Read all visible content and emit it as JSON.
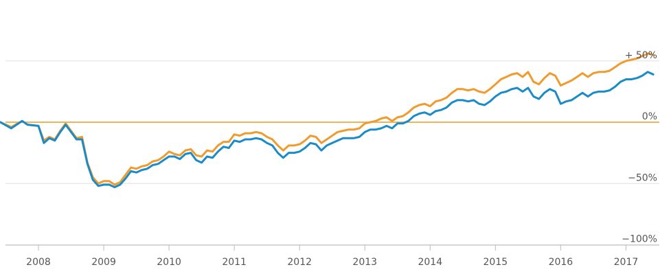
{
  "chart_data": {
    "type": "line",
    "title": "",
    "xlabel": "",
    "ylabel": "",
    "x_start": "2007-06",
    "x_end": "2017-06",
    "ylim": [
      -100,
      68
    ],
    "y_ticks": [
      {
        "value": 50,
        "label": "+ 50%"
      },
      {
        "value": 0,
        "label": "0%"
      },
      {
        "value": -50,
        "label": "−50%"
      },
      {
        "value": -100,
        "label": "−100%"
      }
    ],
    "x_ticks": [
      "2008",
      "2009",
      "2010",
      "2011",
      "2012",
      "2013",
      "2014",
      "2015",
      "2016",
      "2017"
    ],
    "grid": true,
    "zero_line_color": "#f0b458",
    "series": [
      {
        "color": "#ef9b2e",
        "points": [
          [
            "2007-06",
            0
          ],
          [
            "2007-08",
            -4
          ],
          [
            "2007-10",
            1
          ],
          [
            "2007-11",
            -2
          ],
          [
            "2008-01",
            -3
          ],
          [
            "2008-02",
            -15
          ],
          [
            "2008-03",
            -12
          ],
          [
            "2008-04",
            -14
          ],
          [
            "2008-05",
            -7
          ],
          [
            "2008-06",
            -1
          ],
          [
            "2008-07",
            -7
          ],
          [
            "2008-08",
            -13
          ],
          [
            "2008-09",
            -12
          ],
          [
            "2008-10",
            -33
          ],
          [
            "2008-11",
            -45
          ],
          [
            "2008-12",
            -50
          ],
          [
            "2009-01",
            -48
          ],
          [
            "2009-02",
            -48
          ],
          [
            "2009-03",
            -51
          ],
          [
            "2009-04",
            -49
          ],
          [
            "2009-05",
            -43
          ],
          [
            "2009-06",
            -37
          ],
          [
            "2009-07",
            -38
          ],
          [
            "2009-08",
            -36
          ],
          [
            "2009-09",
            -35
          ],
          [
            "2009-10",
            -32
          ],
          [
            "2009-11",
            -31
          ],
          [
            "2009-12",
            -28
          ],
          [
            "2010-01",
            -24
          ],
          [
            "2010-02",
            -26
          ],
          [
            "2010-03",
            -27
          ],
          [
            "2010-04",
            -23
          ],
          [
            "2010-05",
            -22
          ],
          [
            "2010-06",
            -27
          ],
          [
            "2010-07",
            -28
          ],
          [
            "2010-08",
            -23
          ],
          [
            "2010-09",
            -24
          ],
          [
            "2010-10",
            -19
          ],
          [
            "2010-11",
            -16
          ],
          [
            "2010-12",
            -16
          ],
          [
            "2011-01",
            -10
          ],
          [
            "2011-02",
            -11
          ],
          [
            "2011-03",
            -9
          ],
          [
            "2011-04",
            -9
          ],
          [
            "2011-05",
            -8
          ],
          [
            "2011-06",
            -9
          ],
          [
            "2011-07",
            -12
          ],
          [
            "2011-08",
            -14
          ],
          [
            "2011-09",
            -19
          ],
          [
            "2011-10",
            -23
          ],
          [
            "2011-11",
            -19
          ],
          [
            "2011-12",
            -19
          ],
          [
            "2012-01",
            -18
          ],
          [
            "2012-02",
            -15
          ],
          [
            "2012-03",
            -11
          ],
          [
            "2012-04",
            -12
          ],
          [
            "2012-05",
            -17
          ],
          [
            "2012-06",
            -14
          ],
          [
            "2012-07",
            -11
          ],
          [
            "2012-08",
            -8
          ],
          [
            "2012-09",
            -7
          ],
          [
            "2012-10",
            -6
          ],
          [
            "2012-11",
            -6
          ],
          [
            "2012-12",
            -5
          ],
          [
            "2013-01",
            -1
          ],
          [
            "2013-02",
            0
          ],
          [
            "2013-03",
            1
          ],
          [
            "2013-04",
            3
          ],
          [
            "2013-05",
            4
          ],
          [
            "2013-06",
            1
          ],
          [
            "2013-07",
            4
          ],
          [
            "2013-08",
            5
          ],
          [
            "2013-09",
            8
          ],
          [
            "2013-10",
            12
          ],
          [
            "2013-11",
            14
          ],
          [
            "2013-12",
            15
          ],
          [
            "2014-01",
            13
          ],
          [
            "2014-02",
            17
          ],
          [
            "2014-03",
            18
          ],
          [
            "2014-04",
            20
          ],
          [
            "2014-05",
            24
          ],
          [
            "2014-06",
            27
          ],
          [
            "2014-07",
            27
          ],
          [
            "2014-08",
            26
          ],
          [
            "2014-09",
            27
          ],
          [
            "2014-10",
            25
          ],
          [
            "2014-11",
            24
          ],
          [
            "2014-12",
            27
          ],
          [
            "2015-01",
            31
          ],
          [
            "2015-02",
            35
          ],
          [
            "2015-03",
            37
          ],
          [
            "2015-04",
            39
          ],
          [
            "2015-05",
            40
          ],
          [
            "2015-06",
            37
          ],
          [
            "2015-07",
            41
          ],
          [
            "2015-08",
            33
          ],
          [
            "2015-09",
            31
          ],
          [
            "2015-10",
            36
          ],
          [
            "2015-11",
            40
          ],
          [
            "2015-12",
            38
          ],
          [
            "2016-01",
            30
          ],
          [
            "2016-02",
            32
          ],
          [
            "2016-03",
            34
          ],
          [
            "2016-04",
            37
          ],
          [
            "2016-05",
            40
          ],
          [
            "2016-06",
            37
          ],
          [
            "2016-07",
            40
          ],
          [
            "2016-08",
            41
          ],
          [
            "2016-09",
            41
          ],
          [
            "2016-10",
            42
          ],
          [
            "2016-11",
            45
          ],
          [
            "2016-12",
            48
          ],
          [
            "2017-01",
            50
          ],
          [
            "2017-02",
            51
          ],
          [
            "2017-03",
            52
          ],
          [
            "2017-04",
            54
          ],
          [
            "2017-05",
            56
          ],
          [
            "2017-06",
            55
          ]
        ]
      },
      {
        "color": "#1a8bc8",
        "points": [
          [
            "2007-06",
            0
          ],
          [
            "2007-08",
            -5
          ],
          [
            "2007-10",
            1
          ],
          [
            "2007-11",
            -2
          ],
          [
            "2008-01",
            -3
          ],
          [
            "2008-02",
            -17
          ],
          [
            "2008-03",
            -13
          ],
          [
            "2008-04",
            -15
          ],
          [
            "2008-05",
            -8
          ],
          [
            "2008-06",
            -2
          ],
          [
            "2008-07",
            -8
          ],
          [
            "2008-08",
            -14
          ],
          [
            "2008-09",
            -14
          ],
          [
            "2008-10",
            -34
          ],
          [
            "2008-11",
            -47
          ],
          [
            "2008-12",
            -52
          ],
          [
            "2009-01",
            -51
          ],
          [
            "2009-02",
            -51
          ],
          [
            "2009-03",
            -53
          ],
          [
            "2009-04",
            -51
          ],
          [
            "2009-05",
            -46
          ],
          [
            "2009-06",
            -40
          ],
          [
            "2009-07",
            -41
          ],
          [
            "2009-08",
            -39
          ],
          [
            "2009-09",
            -38
          ],
          [
            "2009-10",
            -35
          ],
          [
            "2009-11",
            -34
          ],
          [
            "2009-12",
            -31
          ],
          [
            "2010-01",
            -28
          ],
          [
            "2010-02",
            -28
          ],
          [
            "2010-03",
            -30
          ],
          [
            "2010-04",
            -26
          ],
          [
            "2010-05",
            -25
          ],
          [
            "2010-06",
            -31
          ],
          [
            "2010-07",
            -33
          ],
          [
            "2010-08",
            -28
          ],
          [
            "2010-09",
            -29
          ],
          [
            "2010-10",
            -24
          ],
          [
            "2010-11",
            -20
          ],
          [
            "2010-12",
            -21
          ],
          [
            "2011-01",
            -15
          ],
          [
            "2011-02",
            -16
          ],
          [
            "2011-03",
            -14
          ],
          [
            "2011-04",
            -14
          ],
          [
            "2011-05",
            -13
          ],
          [
            "2011-06",
            -14
          ],
          [
            "2011-07",
            -17
          ],
          [
            "2011-08",
            -19
          ],
          [
            "2011-09",
            -25
          ],
          [
            "2011-10",
            -29
          ],
          [
            "2011-11",
            -25
          ],
          [
            "2011-12",
            -25
          ],
          [
            "2012-01",
            -24
          ],
          [
            "2012-02",
            -21
          ],
          [
            "2012-03",
            -17
          ],
          [
            "2012-04",
            -18
          ],
          [
            "2012-05",
            -23
          ],
          [
            "2012-06",
            -19
          ],
          [
            "2012-07",
            -17
          ],
          [
            "2012-08",
            -15
          ],
          [
            "2012-09",
            -13
          ],
          [
            "2012-10",
            -13
          ],
          [
            "2012-11",
            -13
          ],
          [
            "2012-12",
            -12
          ],
          [
            "2013-01",
            -8
          ],
          [
            "2013-02",
            -6
          ],
          [
            "2013-03",
            -6
          ],
          [
            "2013-04",
            -5
          ],
          [
            "2013-05",
            -3
          ],
          [
            "2013-06",
            -5
          ],
          [
            "2013-07",
            -1
          ],
          [
            "2013-08",
            -1
          ],
          [
            "2013-09",
            1
          ],
          [
            "2013-10",
            5
          ],
          [
            "2013-11",
            7
          ],
          [
            "2013-12",
            8
          ],
          [
            "2014-01",
            6
          ],
          [
            "2014-02",
            9
          ],
          [
            "2014-03",
            10
          ],
          [
            "2014-04",
            12
          ],
          [
            "2014-05",
            16
          ],
          [
            "2014-06",
            18
          ],
          [
            "2014-07",
            18
          ],
          [
            "2014-08",
            17
          ],
          [
            "2014-09",
            18
          ],
          [
            "2014-10",
            15
          ],
          [
            "2014-11",
            14
          ],
          [
            "2014-12",
            17
          ],
          [
            "2015-01",
            21
          ],
          [
            "2015-02",
            24
          ],
          [
            "2015-03",
            25
          ],
          [
            "2015-04",
            27
          ],
          [
            "2015-05",
            28
          ],
          [
            "2015-06",
            25
          ],
          [
            "2015-07",
            28
          ],
          [
            "2015-08",
            21
          ],
          [
            "2015-09",
            19
          ],
          [
            "2015-10",
            24
          ],
          [
            "2015-11",
            27
          ],
          [
            "2015-12",
            25
          ],
          [
            "2016-01",
            15
          ],
          [
            "2016-02",
            17
          ],
          [
            "2016-03",
            18
          ],
          [
            "2016-04",
            21
          ],
          [
            "2016-05",
            24
          ],
          [
            "2016-06",
            21
          ],
          [
            "2016-07",
            24
          ],
          [
            "2016-08",
            25
          ],
          [
            "2016-09",
            25
          ],
          [
            "2016-10",
            26
          ],
          [
            "2016-11",
            29
          ],
          [
            "2016-12",
            33
          ],
          [
            "2017-01",
            35
          ],
          [
            "2017-02",
            35
          ],
          [
            "2017-03",
            36
          ],
          [
            "2017-04",
            38
          ],
          [
            "2017-05",
            41
          ],
          [
            "2017-06",
            39
          ]
        ]
      }
    ]
  }
}
